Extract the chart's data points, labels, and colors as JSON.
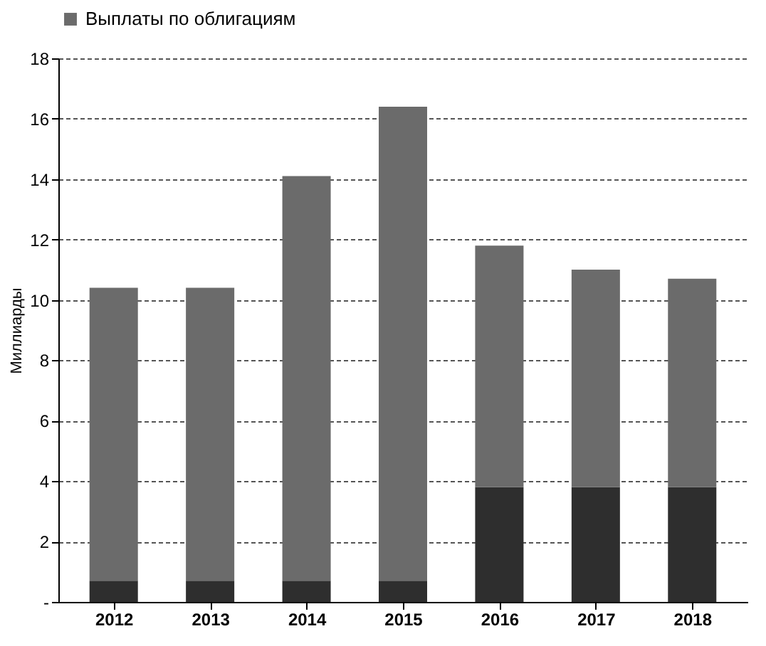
{
  "chart_data": {
    "type": "bar",
    "stacked": true,
    "ylabel": "Миллиарды",
    "categories": [
      "2012",
      "2013",
      "2014",
      "2015",
      "2016",
      "2017",
      "2018"
    ],
    "series": [
      {
        "color": "#2e2e2e",
        "values": [
          0.7,
          0.7,
          0.7,
          0.7,
          3.8,
          3.8,
          3.8
        ]
      },
      {
        "name": "Выплаты по облигациям",
        "color": "#6b6b6b",
        "values": [
          9.7,
          9.7,
          13.4,
          15.7,
          8.0,
          7.2,
          6.9
        ]
      }
    ],
    "ylim": [
      0,
      18
    ],
    "yticks": [
      {
        "value": 0,
        "label": "-"
      },
      2,
      4,
      6,
      8,
      10,
      12,
      14,
      16,
      18
    ],
    "grid": "y",
    "legend": "top"
  }
}
